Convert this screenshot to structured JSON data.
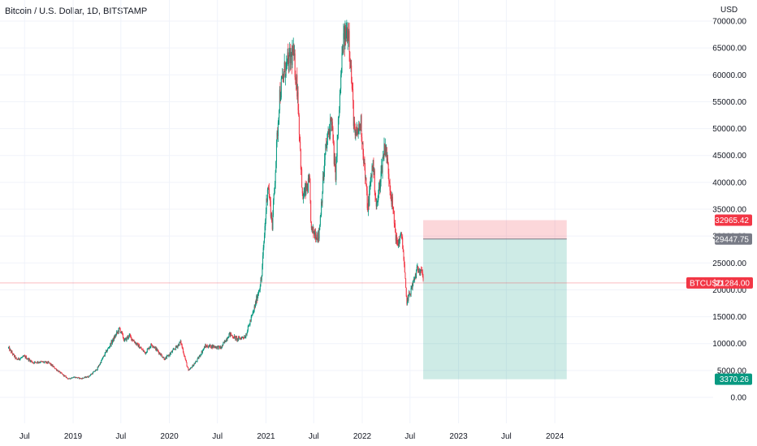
{
  "header": {
    "title": "Bitcoin / U.S. Dollar, 1D, BITSTAMP"
  },
  "chart_data": {
    "type": "candlestick",
    "symbol": "BTCUSD",
    "currency_label": "USD",
    "y_ticks": [
      "0.00",
      "5000.00",
      "10000.00",
      "15000.00",
      "20000.00",
      "25000.00",
      "30000.00",
      "35000.00",
      "40000.00",
      "45000.00",
      "50000.00",
      "55000.00",
      "60000.00",
      "65000.00",
      "70000.00"
    ],
    "y_tick_values": [
      0,
      5000,
      10000,
      15000,
      20000,
      25000,
      30000,
      35000,
      40000,
      45000,
      50000,
      55000,
      60000,
      65000,
      70000
    ],
    "ylim": [
      -3000,
      73000
    ],
    "x_ticks": [
      "Jul",
      "2019",
      "Jul",
      "2020",
      "Jul",
      "2021",
      "Jul",
      "2022",
      "Jul",
      "2023",
      "Jul",
      "2024"
    ],
    "x_tick_dates": [
      "2018-07-01",
      "2019-01-01",
      "2019-07-01",
      "2020-01-01",
      "2020-07-01",
      "2021-01-01",
      "2021-07-01",
      "2022-01-01",
      "2022-07-01",
      "2023-01-01",
      "2023-07-01",
      "2024-01-01"
    ],
    "price_path": [
      [
        "2018-05-01",
        9200
      ],
      [
        "2018-06-01",
        7000
      ],
      [
        "2018-07-01",
        7600
      ],
      [
        "2018-08-01",
        6500
      ],
      [
        "2018-09-01",
        6600
      ],
      [
        "2018-10-01",
        6400
      ],
      [
        "2018-11-15",
        4500
      ],
      [
        "2018-12-15",
        3400
      ],
      [
        "2019-01-01",
        3800
      ],
      [
        "2019-02-01",
        3500
      ],
      [
        "2019-03-01",
        3900
      ],
      [
        "2019-04-01",
        5200
      ],
      [
        "2019-05-01",
        8000
      ],
      [
        "2019-06-26",
        12800
      ],
      [
        "2019-07-15",
        10500
      ],
      [
        "2019-08-01",
        11500
      ],
      [
        "2019-09-01",
        9800
      ],
      [
        "2019-10-01",
        8300
      ],
      [
        "2019-10-26",
        9900
      ],
      [
        "2019-12-15",
        7100
      ],
      [
        "2020-01-15",
        8700
      ],
      [
        "2020-02-13",
        10300
      ],
      [
        "2020-03-13",
        4900
      ],
      [
        "2020-04-15",
        6900
      ],
      [
        "2020-05-15",
        9500
      ],
      [
        "2020-06-15",
        9500
      ],
      [
        "2020-07-15",
        9200
      ],
      [
        "2020-08-15",
        11800
      ],
      [
        "2020-09-15",
        10800
      ],
      [
        "2020-10-15",
        11400
      ],
      [
        "2020-11-15",
        16000
      ],
      [
        "2020-12-15",
        22000
      ],
      [
        "2021-01-08",
        40000
      ],
      [
        "2021-01-25",
        32000
      ],
      [
        "2021-02-21",
        56000
      ],
      [
        "2021-03-13",
        61000
      ],
      [
        "2021-04-14",
        64000
      ],
      [
        "2021-05-01",
        57000
      ],
      [
        "2021-05-19",
        37000
      ],
      [
        "2021-06-15",
        40000
      ],
      [
        "2021-06-22",
        31000
      ],
      [
        "2021-07-20",
        30000
      ],
      [
        "2021-08-15",
        46000
      ],
      [
        "2021-09-06",
        52000
      ],
      [
        "2021-09-21",
        41000
      ],
      [
        "2021-10-20",
        66000
      ],
      [
        "2021-11-10",
        68800
      ],
      [
        "2021-12-04",
        48000
      ],
      [
        "2021-12-27",
        51000
      ],
      [
        "2022-01-22",
        35000
      ],
      [
        "2022-02-10",
        44000
      ],
      [
        "2022-02-24",
        35000
      ],
      [
        "2022-03-28",
        47500
      ],
      [
        "2022-04-15",
        40000
      ],
      [
        "2022-05-12",
        28500
      ],
      [
        "2022-06-01",
        30000
      ],
      [
        "2022-06-18",
        17800
      ],
      [
        "2022-07-05",
        20000
      ],
      [
        "2022-07-30",
        24000
      ],
      [
        "2022-08-15",
        24000
      ],
      [
        "2022-08-20",
        21284
      ]
    ],
    "last_price": {
      "label": "BTCUSD",
      "value": 21284.0,
      "text": "21284.00",
      "color": "#f23645"
    },
    "position": {
      "type": "long",
      "start": "2022-08-20",
      "end": "2024-02-15",
      "stop": 32965.42,
      "stop_text": "32965.42",
      "entry": 29447.75,
      "entry_text": "29447.75",
      "target": 3370.26,
      "target_text": "3370.26",
      "stop_color": "#f23645",
      "target_color": "#089981",
      "entry_color": "#787b86"
    },
    "colors": {
      "up": "#089981",
      "down": "#f23645"
    }
  }
}
